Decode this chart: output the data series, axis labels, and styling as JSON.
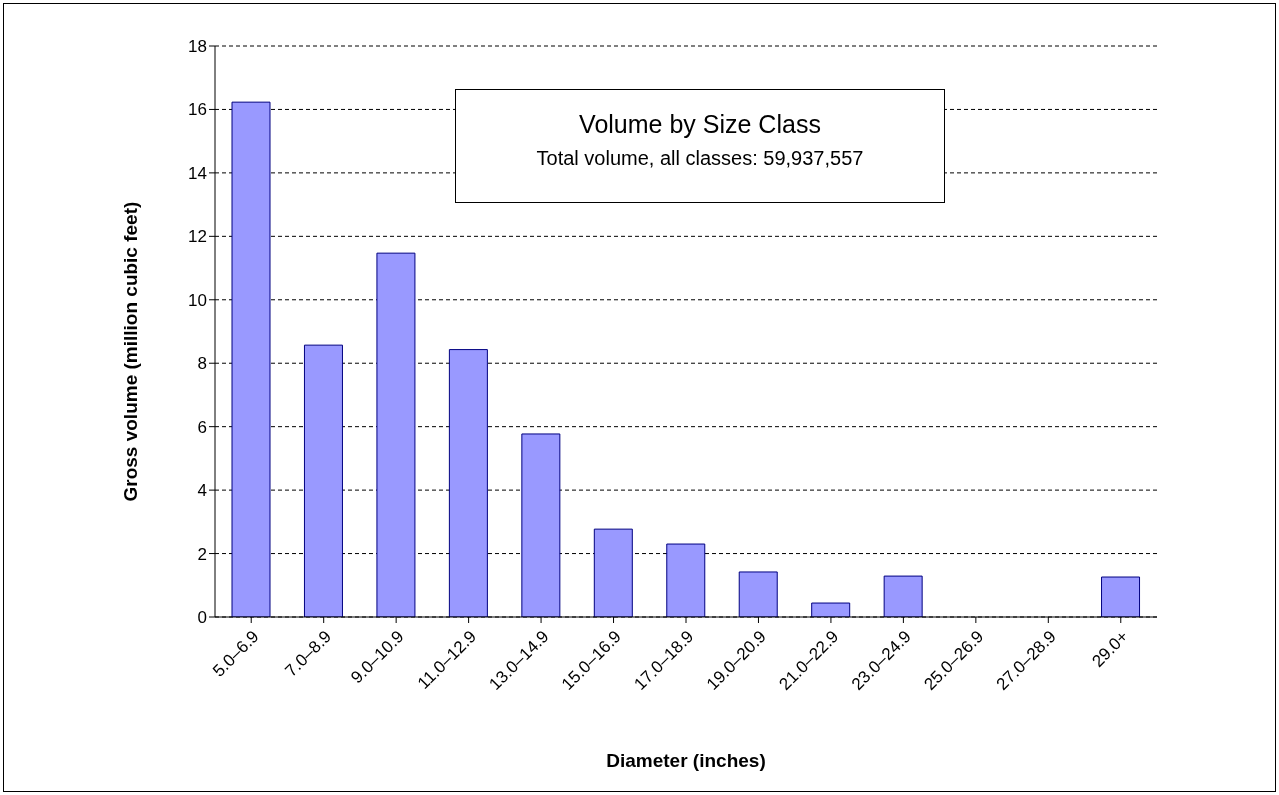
{
  "chart_data": {
    "type": "bar",
    "title": "Volume by Size Class",
    "subtitle": "Total volume, all classes: 59,937,557",
    "xlabel": "Diameter (inches)",
    "ylabel": "Gross volume (million cubic feet)",
    "categories": [
      "5.0–6.9",
      "7.0–8.9",
      "9.0–10.9",
      "11.0–12.9",
      "13.0–14.9",
      "15.0–16.9",
      "17.0–18.9",
      "19.0–20.9",
      "21.0–22.9",
      "23.0–24.9",
      "25.0–26.9",
      "27.0–28.9",
      "29.0+"
    ],
    "values": [
      16.23,
      8.57,
      11.47,
      8.43,
      5.77,
      2.77,
      2.3,
      1.42,
      0.44,
      1.29,
      0,
      0,
      1.26
    ],
    "color": "#9999ff",
    "ylim": [
      0,
      18
    ],
    "yticks": [
      0,
      2,
      4,
      6,
      8,
      10,
      12,
      14,
      16,
      18
    ],
    "grid": "y"
  }
}
